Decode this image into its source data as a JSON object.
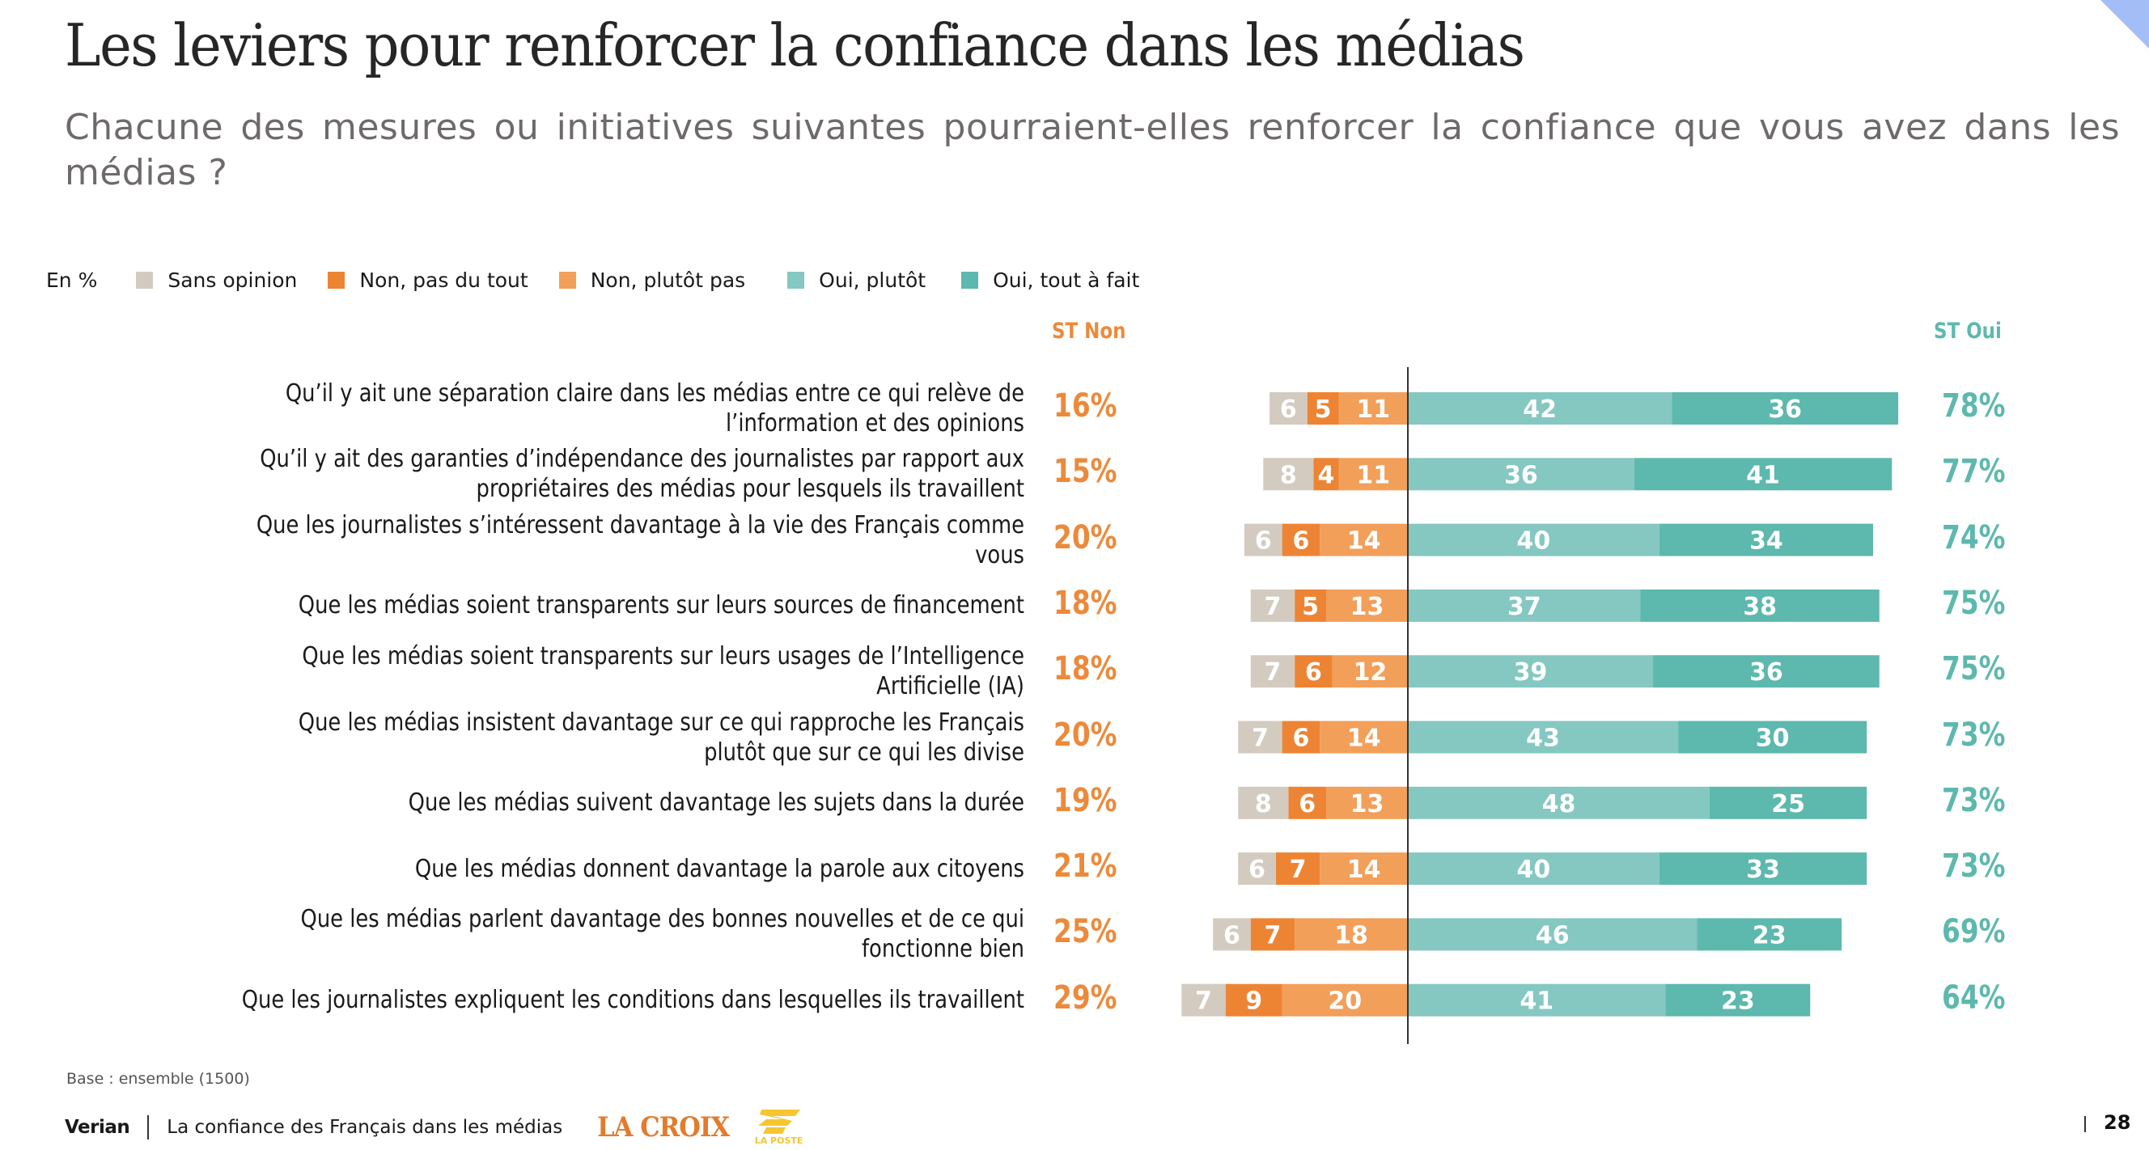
{
  "header": {
    "title": "Les leviers pour renforcer la confiance dans les médias",
    "subtitle": "Chacune des mesures ou initiatives suivantes pourraient-elles renforcer la confiance que vous avez dans les médias ?"
  },
  "legend": {
    "unit": "En %",
    "items": [
      {
        "label": "Sans opinion",
        "color": "#d3cbc0"
      },
      {
        "label": "Non, pas du tout",
        "color": "#ed8434"
      },
      {
        "label": "Non, plutôt pas",
        "color": "#f29f5a"
      },
      {
        "label": "Oui, plutôt",
        "color": "#84c8c1"
      },
      {
        "label": "Oui, tout à fait",
        "color": "#5db8ad"
      }
    ]
  },
  "columns": {
    "st_non": "ST Non",
    "st_oui": "ST Oui"
  },
  "chart_data": {
    "type": "bar",
    "subtype": "diverging-stacked-horizontal",
    "title": "Les leviers pour renforcer la confiance dans les médias",
    "unit": "%",
    "series": [
      {
        "name": "Sans opinion",
        "color": "#d3cbc0",
        "side": "negative",
        "values": [
          6,
          8,
          6,
          7,
          7,
          7,
          8,
          6,
          6,
          7
        ]
      },
      {
        "name": "Non, pas du tout",
        "color": "#ed8434",
        "side": "negative",
        "values": [
          5,
          4,
          6,
          5,
          6,
          6,
          6,
          7,
          7,
          9
        ]
      },
      {
        "name": "Non, plutôt pas",
        "color": "#f29f5a",
        "side": "negative",
        "values": [
          11,
          11,
          14,
          13,
          12,
          14,
          13,
          14,
          18,
          20
        ]
      },
      {
        "name": "Oui, plutôt",
        "color": "#84c8c1",
        "side": "positive",
        "values": [
          42,
          36,
          40,
          37,
          39,
          43,
          48,
          40,
          46,
          41
        ]
      },
      {
        "name": "Oui, tout à fait",
        "color": "#5db8ad",
        "side": "positive",
        "values": [
          36,
          41,
          34,
          38,
          36,
          30,
          25,
          33,
          23,
          23
        ]
      }
    ],
    "st_non": [
      "16%",
      "15%",
      "20%",
      "18%",
      "18%",
      "20%",
      "19%",
      "21%",
      "25%",
      "29%"
    ],
    "st_oui": [
      "78%",
      "77%",
      "74%",
      "75%",
      "75%",
      "73%",
      "73%",
      "73%",
      "69%",
      "64%"
    ],
    "categories": [
      "Qu’il y ait une séparation claire dans les médias entre ce qui relève de l’information et des opinions",
      "Qu’il y ait des garanties d’indépendance des journalistes par rapport aux propriétaires des médias pour lesquels ils travaillent",
      "Que les journalistes s’intéressent davantage à la vie des Français comme vous",
      "Que les médias soient transparents sur leurs sources de financement",
      "Que les médias soient transparents sur leurs usages de l’Intelligence Artificielle (IA)",
      "Que les médias insistent davantage sur ce qui rapproche les Français plutôt que sur ce qui les divise",
      "Que les médias suivent davantage les sujets dans la durée",
      "Que les médias donnent davantage la parole aux citoyens",
      "Que les médias parlent davantage des bonnes nouvelles et de ce qui fonctionne bien",
      "Que les journalistes expliquent les conditions dans lesquelles ils travaillent"
    ],
    "label_lines": [
      [
        "Qu’il y ait une séparation claire dans les médias entre ce qui relève de",
        "l’information et des opinions"
      ],
      [
        "Qu’il y ait des garanties d’indépendance des journalistes par rapport aux",
        "propriétaires des médias pour lesquels ils travaillent"
      ],
      [
        "Que les journalistes s’intéressent davantage à la vie des Français comme",
        "vous"
      ],
      [
        "Que les médias soient transparents sur leurs sources de financement"
      ],
      [
        "Que les médias soient transparents sur leurs usages de l’Intelligence",
        "Artificielle (IA)"
      ],
      [
        "Que les médias insistent davantage sur ce qui rapproche les Français",
        "plutôt que sur ce qui les divise"
      ],
      [
        "Que les médias suivent davantage les sujets dans la durée"
      ],
      [
        "Que les médias donnent davantage la parole aux citoyens"
      ],
      [
        "Que les médias parlent davantage des bonnes nouvelles et de ce qui",
        "fonctionne bien"
      ],
      [
        "Que les journalistes expliquent les conditions dans lesquelles ils travaillent"
      ]
    ],
    "xlabel": "",
    "ylabel": "",
    "legend_position": "top"
  },
  "footer": {
    "base": "Base : ensemble (1500)",
    "brand": "Verian",
    "study_title": "La confiance des Français dans les médias",
    "partner1": "LA CROIX",
    "partner2": "LA POSTE",
    "page_number": "28"
  }
}
